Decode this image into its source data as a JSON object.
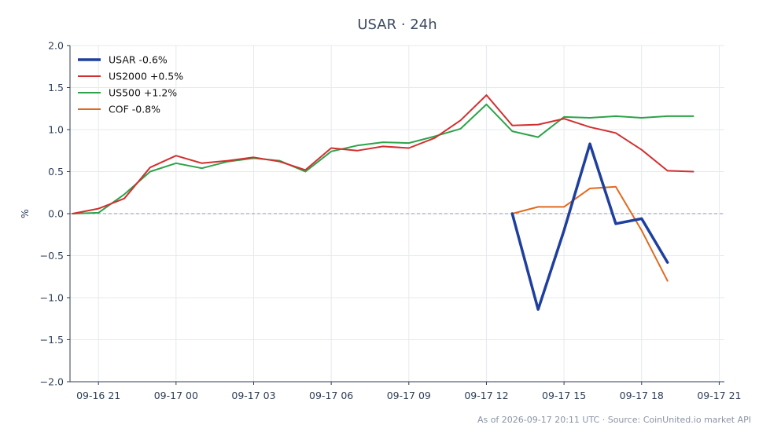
{
  "chart_data": {
    "type": "line",
    "title": "USAR · 24h",
    "xlabel": "",
    "ylabel": "%",
    "ylim": [
      -2.0,
      2.0
    ],
    "xlim_hours_from_09_16_21": [
      -1.1,
      24.2
    ],
    "x_ticks": [
      "09-16 21",
      "09-17 00",
      "09-17 03",
      "09-17 06",
      "09-17 09",
      "09-17 12",
      "09-17 15",
      "09-17 18",
      "09-17 21"
    ],
    "y_ticks": [
      "2.0",
      "1.5",
      "1.0",
      "0.5",
      "0.0",
      "−0.5",
      "−1.0",
      "−1.5",
      "−2.0"
    ],
    "grid": true,
    "zero_line": true,
    "legend_position": "top-left",
    "series": [
      {
        "name": "USAR -0.6%",
        "color": "#1f3f9e",
        "width": 3.5,
        "x": [
          "09-17 13:00",
          "09-17 14:00",
          "09-17 15:00",
          "09-17 16:00",
          "09-17 17:00",
          "09-17 18:00",
          "09-17 19:00"
        ],
        "values": [
          0.0,
          -1.14,
          -0.2,
          0.83,
          -0.12,
          -0.06,
          -0.58
        ]
      },
      {
        "name": "US2000 +0.5%",
        "color": "#d32f2f",
        "width": 2,
        "x": [
          "09-16 20:00",
          "09-16 21:00",
          "09-16 22:00",
          "09-16 23:00",
          "09-17 00:00",
          "09-17 01:00",
          "09-17 02:00",
          "09-17 03:00",
          "09-17 04:00",
          "09-17 05:00",
          "09-17 06:00",
          "09-17 07:00",
          "09-17 08:00",
          "09-17 09:00",
          "09-17 10:00",
          "09-17 11:00",
          "09-17 12:00",
          "09-17 13:00",
          "09-17 14:00",
          "09-17 15:00",
          "09-17 16:00",
          "09-17 17:00",
          "09-17 18:00",
          "09-17 19:00",
          "09-17 20:00"
        ],
        "values": [
          0.0,
          0.06,
          0.18,
          0.55,
          0.69,
          0.6,
          0.63,
          0.67,
          0.62,
          0.52,
          0.78,
          0.75,
          0.8,
          0.78,
          0.9,
          1.11,
          1.41,
          1.05,
          1.06,
          1.13,
          1.03,
          0.96,
          0.76,
          0.51,
          0.5
        ]
      },
      {
        "name": "US500 +1.2%",
        "color": "#2ca34a",
        "width": 2,
        "x": [
          "09-16 20:00",
          "09-16 21:00",
          "09-16 22:00",
          "09-16 23:00",
          "09-17 00:00",
          "09-17 01:00",
          "09-17 02:00",
          "09-17 03:00",
          "09-17 04:00",
          "09-17 05:00",
          "09-17 06:00",
          "09-17 07:00",
          "09-17 08:00",
          "09-17 09:00",
          "09-17 10:00",
          "09-17 11:00",
          "09-17 12:00",
          "09-17 13:00",
          "09-17 14:00",
          "09-17 15:00",
          "09-17 16:00",
          "09-17 17:00",
          "09-17 18:00",
          "09-17 19:00",
          "09-17 20:00"
        ],
        "values": [
          0.0,
          0.01,
          0.23,
          0.5,
          0.6,
          0.54,
          0.62,
          0.66,
          0.63,
          0.5,
          0.74,
          0.81,
          0.85,
          0.84,
          0.92,
          1.01,
          1.3,
          0.98,
          0.91,
          1.15,
          1.14,
          1.16,
          1.14,
          1.16,
          1.16
        ]
      },
      {
        "name": "COF -0.8%",
        "color": "#e06a1f",
        "width": 2,
        "x": [
          "09-17 13:00",
          "09-17 14:00",
          "09-17 15:00",
          "09-17 16:00",
          "09-17 17:00",
          "09-17 18:00",
          "09-17 19:00"
        ],
        "values": [
          0.0,
          0.08,
          0.08,
          0.3,
          0.32,
          -0.2,
          -0.8
        ]
      }
    ]
  },
  "footer": "As of 2026-09-17 20:11 UTC · Source: CoinUnited.io market API"
}
